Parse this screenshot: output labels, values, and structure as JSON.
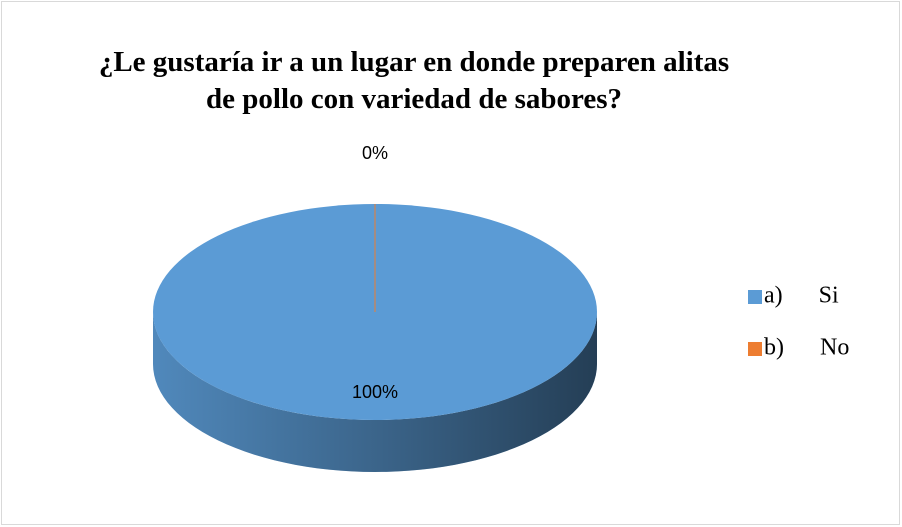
{
  "chart_data": {
    "type": "pie",
    "title": "¿Le gustaría ir a un lugar en donde preparen alitas de pollo con variedad de sabores?",
    "categories": [
      "a) Si",
      "b) No"
    ],
    "values": [
      100,
      0
    ],
    "value_labels": [
      "100%",
      "0%"
    ],
    "colors": [
      "#5b9bd5",
      "#ed7d31"
    ],
    "legend": "right"
  }
}
